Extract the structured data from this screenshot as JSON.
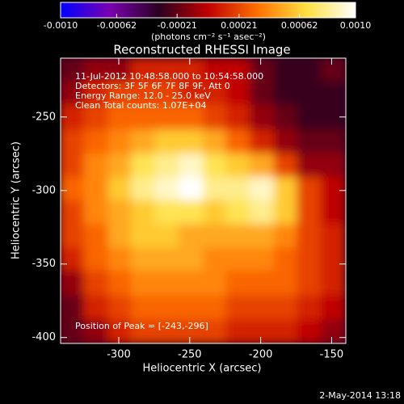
{
  "chart_data": {
    "type": "heatmap",
    "title": "Reconstructed RHESSI Image",
    "xlabel": "Heliocentric X (arcsec)",
    "ylabel": "Heliocentric Y (arcsec)",
    "annotations": [
      "11-Jul-2012 10:48:58.000 to 10:54:58.000",
      "Detectors: 3F 5F 6F 7F 8F 9F, Att 0",
      "Energy Range: 12.0 - 25.0 keV",
      "Clean     Total counts: 1.07E+04"
    ],
    "peak_label": "Position of Peak = [-243,-296]",
    "xlim": [
      -341,
      -140
    ],
    "ylim": [
      -404,
      -210
    ],
    "xticks": [
      -300,
      -250,
      -200,
      -150
    ],
    "yticks": [
      -400,
      -350,
      -300,
      -250
    ],
    "x": [
      -333,
      -316,
      -299,
      -283,
      -266,
      -249,
      -232,
      -216,
      -199,
      -182,
      -166,
      -149
    ],
    "y": [
      -218,
      -234,
      -250,
      -267,
      -283,
      -299,
      -315,
      -331,
      -347,
      -363,
      -380,
      -396
    ],
    "z": [
      [
        -0.0002,
        -0.0001,
        -0.0001,
        0.0001,
        0.0001,
        0.0001,
        0,
        0,
        -0.0002,
        -0.0003,
        -0.0003,
        -0.0002
      ],
      [
        -0.0001,
        0.0001,
        0.0002,
        0.0002,
        0.0002,
        0.0001,
        0.0001,
        0,
        -0.0002,
        -0.0003,
        -0.0003,
        -0.0003
      ],
      [
        0.0001,
        0.0002,
        0.0003,
        0.0003,
        0.0003,
        0.0003,
        0.0002,
        0.0001,
        -0.0001,
        -0.0002,
        -0.0003,
        -0.0003
      ],
      [
        0.0002,
        0.0003,
        0.0004,
        0.0005,
        0.0006,
        0.0006,
        0.0005,
        0.0003,
        0.0001,
        -0.0001,
        -0.0002,
        -0.0002
      ],
      [
        0.0002,
        0.0004,
        0.0005,
        0.0007,
        0.0008,
        0.0009,
        0.0007,
        0.0006,
        0.0005,
        0.0002,
        -0.0001,
        -0.0001
      ],
      [
        0.0003,
        0.0004,
        0.0006,
        0.0008,
        0.0009,
        0.001,
        0.0008,
        0.0008,
        0.0009,
        0.0006,
        0.0002,
        0
      ],
      [
        0.0002,
        0.0004,
        0.0005,
        0.0006,
        0.0007,
        0.0007,
        0.0006,
        0.0007,
        0.0008,
        0.0006,
        0.0002,
        0
      ],
      [
        0.0002,
        0.0003,
        0.0005,
        0.0006,
        0.0006,
        0.0005,
        0.0005,
        0.0005,
        0.0005,
        0.0004,
        0.0002,
        0.0001
      ],
      [
        0.0001,
        0.0003,
        0.0004,
        0.0005,
        0.0005,
        0.0005,
        0.0004,
        0.0004,
        0.0004,
        0.0003,
        0.0002,
        0.0001
      ],
      [
        -0.0001,
        0.0002,
        0.0003,
        0.0004,
        0.0004,
        0.0004,
        0.0004,
        0.0003,
        0.0003,
        0.0003,
        0.0002,
        0.0001
      ],
      [
        -0.0002,
        0.0001,
        0.0002,
        0.0003,
        0.0003,
        0.0003,
        0.0003,
        0.0002,
        0.0002,
        0.0002,
        0.0001,
        0
      ],
      [
        -0.0002,
        -0.0001,
        0.0001,
        0.0002,
        0.0002,
        0.0002,
        0.0002,
        0.0001,
        0.0001,
        0.0001,
        0,
        -0.0001
      ]
    ],
    "colorbar": {
      "label": "(photons cm⁻² s⁻¹ asec⁻²)",
      "lim": [
        -0.001,
        0.001
      ],
      "ticks": [
        {
          "value": -0.001,
          "label": "-0.0010"
        },
        -0.00062,
        -0.00021,
        0.00021,
        0.00062,
        {
          "value": 0.001,
          "label": "0.0010"
        }
      ],
      "colormap": [
        "#0000ff",
        "#7a00b0",
        "#2a0020",
        "#c00000",
        "#ff7000",
        "#ffe040",
        "#ffffff"
      ]
    }
  },
  "footer": "2-May-2014 13:18"
}
